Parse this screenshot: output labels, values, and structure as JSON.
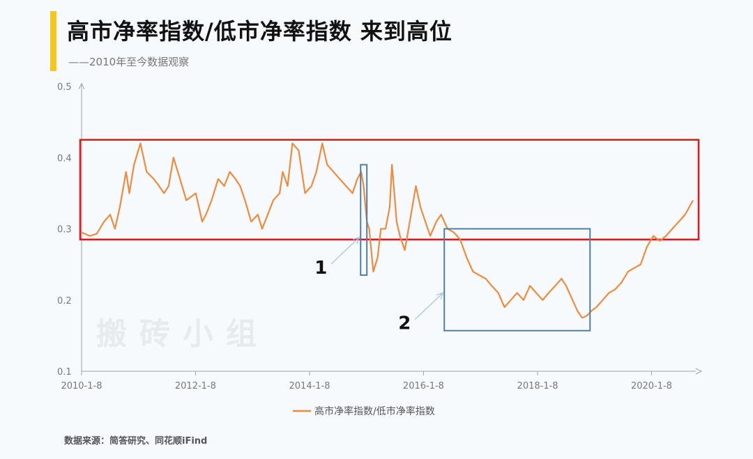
{
  "header": {
    "title": "高市净率指数/低市净率指数 来到高位",
    "subtitle": "——2010年至今数据观察",
    "accent_color": "#f7c51f"
  },
  "footer": {
    "source": "数据来源：简答研究、同花顺iFind"
  },
  "watermark": {
    "text": "搬砖小组"
  },
  "chart_data": {
    "type": "line",
    "title": "",
    "xlabel": "",
    "ylabel": "",
    "ylim": [
      0.1,
      0.5
    ],
    "yticks": [
      "0.1",
      "0.2",
      "0.3",
      "0.4",
      "0.5"
    ],
    "xlim": [
      "2010-01-08",
      "2020-09-30"
    ],
    "xticks": [
      "2010-1-8",
      "2012-1-8",
      "2014-1-8",
      "2016-1-8",
      "2018-1-8",
      "2020-1-8"
    ],
    "grid": false,
    "legend": {
      "position": "bottom",
      "label": "高市净率指数/低市净率指数"
    },
    "line_color": "#f08a3c",
    "series": [
      {
        "name": "高市净率指数/低市净率指数",
        "x": [
          "2010-01-08",
          "2010-03-01",
          "2010-04-15",
          "2010-06-01",
          "2010-07-10",
          "2010-08-10",
          "2010-09-10",
          "2010-10-20",
          "2010-11-10",
          "2010-12-10",
          "2011-01-20",
          "2011-03-01",
          "2011-04-15",
          "2011-05-20",
          "2011-06-20",
          "2011-07-20",
          "2011-08-20",
          "2011-10-01",
          "2011-11-10",
          "2012-01-10",
          "2012-02-20",
          "2012-03-15",
          "2012-04-20",
          "2012-06-01",
          "2012-07-10",
          "2012-08-15",
          "2012-09-20",
          "2012-10-20",
          "2012-11-20",
          "2012-12-30",
          "2013-02-10",
          "2013-03-10",
          "2013-04-15",
          "2013-05-20",
          "2013-06-30",
          "2013-07-20",
          "2013-08-20",
          "2013-09-20",
          "2013-10-30",
          "2013-12-10",
          "2014-01-20",
          "2014-02-20",
          "2014-03-30",
          "2014-05-01",
          "2014-06-10",
          "2014-07-20",
          "2014-08-30",
          "2014-10-10",
          "2014-11-10",
          "2014-12-05",
          "2014-12-20",
          "2015-01-10",
          "2015-01-25",
          "2015-02-20",
          "2015-03-20",
          "2015-04-10",
          "2015-05-10",
          "2015-06-05",
          "2015-06-20",
          "2015-07-05",
          "2015-07-20",
          "2015-08-10",
          "2015-09-10",
          "2015-10-20",
          "2015-11-20",
          "2015-12-20",
          "2016-01-20",
          "2016-02-20",
          "2016-03-30",
          "2016-04-30",
          "2016-06-10",
          "2016-07-20",
          "2016-08-30",
          "2016-10-10",
          "2016-11-20",
          "2016-12-30",
          "2017-02-10",
          "2017-03-20",
          "2017-05-01",
          "2017-06-10",
          "2017-07-20",
          "2017-08-30",
          "2017-10-10",
          "2017-11-20",
          "2017-12-30",
          "2018-02-10",
          "2018-03-20",
          "2018-05-01",
          "2018-06-10",
          "2018-07-10",
          "2018-08-20",
          "2018-09-20",
          "2018-10-20",
          "2018-11-20",
          "2018-12-20",
          "2019-01-20",
          "2019-03-01",
          "2019-04-10",
          "2019-05-20",
          "2019-07-01",
          "2019-08-10",
          "2019-09-20",
          "2019-10-30",
          "2019-12-10",
          "2020-01-20",
          "2020-03-01",
          "2020-04-10",
          "2020-05-20",
          "2020-07-01",
          "2020-08-10",
          "2020-09-30"
        ],
        "values": [
          0.295,
          0.29,
          0.293,
          0.31,
          0.32,
          0.3,
          0.33,
          0.38,
          0.35,
          0.39,
          0.42,
          0.38,
          0.37,
          0.36,
          0.35,
          0.36,
          0.4,
          0.37,
          0.34,
          0.35,
          0.31,
          0.32,
          0.34,
          0.37,
          0.36,
          0.38,
          0.37,
          0.36,
          0.34,
          0.31,
          0.32,
          0.3,
          0.32,
          0.34,
          0.35,
          0.38,
          0.36,
          0.42,
          0.41,
          0.35,
          0.36,
          0.38,
          0.42,
          0.39,
          0.38,
          0.37,
          0.36,
          0.35,
          0.37,
          0.38,
          0.36,
          0.31,
          0.3,
          0.24,
          0.26,
          0.3,
          0.3,
          0.33,
          0.39,
          0.35,
          0.31,
          0.29,
          0.27,
          0.32,
          0.36,
          0.33,
          0.31,
          0.29,
          0.31,
          0.32,
          0.3,
          0.295,
          0.285,
          0.26,
          0.24,
          0.235,
          0.23,
          0.22,
          0.21,
          0.19,
          0.2,
          0.21,
          0.2,
          0.22,
          0.21,
          0.2,
          0.21,
          0.22,
          0.23,
          0.22,
          0.2,
          0.185,
          0.175,
          0.178,
          0.185,
          0.19,
          0.2,
          0.21,
          0.215,
          0.225,
          0.24,
          0.245,
          0.25,
          0.275,
          0.29,
          0.283,
          0.29,
          0.3,
          0.31,
          0.32,
          0.34
        ]
      }
    ],
    "annotations": [
      {
        "label": "1",
        "x_range": [
          "2014-12-01",
          "2015-01-10"
        ],
        "y_range": [
          0.235,
          0.39
        ],
        "color": "#4e7ea6"
      },
      {
        "label": "2",
        "x_range": [
          "2016-05-20",
          "2018-12-10"
        ],
        "y_range": [
          0.157,
          0.3
        ],
        "color": "#4e7ea6"
      }
    ],
    "highlight_band": {
      "x_range": [
        "2010-01-08",
        "2020-09-30"
      ],
      "y_range": [
        0.285,
        0.425
      ],
      "color": "#e8141c"
    }
  }
}
